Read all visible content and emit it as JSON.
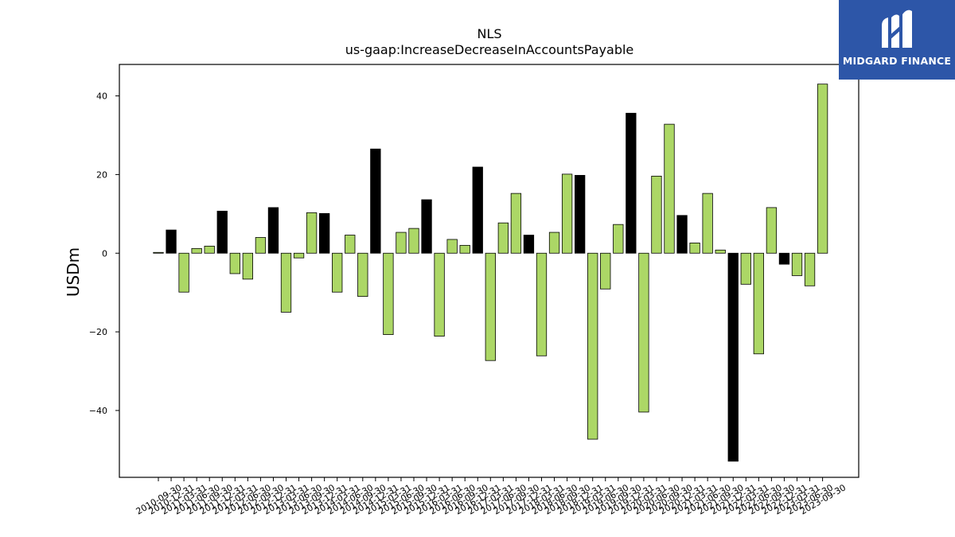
{
  "brand": {
    "name": "MIDGARD FINANCE",
    "color": "#2d56a8"
  },
  "chart_data": {
    "type": "bar",
    "title": "NLS",
    "subtitle": "us-gaap:IncreaseDecreaseInAccountsPayable",
    "xlabel": "",
    "ylabel": "USDm",
    "ylim": [
      -57,
      48
    ],
    "yticks": [
      -40,
      -20,
      0,
      20,
      40
    ],
    "grid": false,
    "colors": {
      "q4": "#000000",
      "other": "#acd766",
      "edge": "#000000"
    },
    "categories": [
      "2010-09-30",
      "2010-12-31",
      "2011-03-31",
      "2011-06-30",
      "2011-09-30",
      "2011-12-31",
      "2012-03-31",
      "2012-06-30",
      "2012-09-30",
      "2012-12-31",
      "2013-03-31",
      "2013-06-30",
      "2013-09-30",
      "2013-12-31",
      "2014-03-31",
      "2014-06-30",
      "2014-09-30",
      "2014-12-31",
      "2015-03-31",
      "2015-06-30",
      "2015-09-30",
      "2015-12-31",
      "2016-03-31",
      "2016-06-30",
      "2016-09-30",
      "2016-12-31",
      "2017-03-31",
      "2017-06-30",
      "2017-09-30",
      "2017-12-31",
      "2018-03-31",
      "2018-06-30",
      "2018-09-30",
      "2018-12-31",
      "2019-03-31",
      "2019-06-30",
      "2019-09-30",
      "2019-12-31",
      "2020-03-31",
      "2020-06-30",
      "2020-09-30",
      "2020-12-31",
      "2021-03-31",
      "2021-06-30",
      "2021-09-30",
      "2021-12-31",
      "2022-03-31",
      "2022-06-30",
      "2022-09-30",
      "2022-12-31",
      "2023-03-31",
      "2023-06-30",
      "2023-09-30"
    ],
    "values": [
      0.2,
      5.9,
      -9.9,
      1.2,
      1.8,
      10.7,
      -5.2,
      -6.6,
      4.0,
      11.6,
      -15.0,
      -1.2,
      10.3,
      10.1,
      -9.9,
      4.6,
      -11.0,
      26.5,
      -20.7,
      5.3,
      6.3,
      13.6,
      -21.1,
      3.5,
      2.0,
      21.9,
      -27.3,
      7.7,
      15.2,
      4.6,
      -26.1,
      5.3,
      20.1,
      19.8,
      -47.3,
      -9.1,
      7.3,
      35.6,
      -40.4,
      19.6,
      32.8,
      9.6,
      2.6,
      15.2,
      0.8,
      -52.9,
      -7.9,
      -25.6,
      11.6,
      -2.8,
      -5.7,
      -8.3,
      43.0
    ],
    "year_end_marker": "12-31"
  }
}
